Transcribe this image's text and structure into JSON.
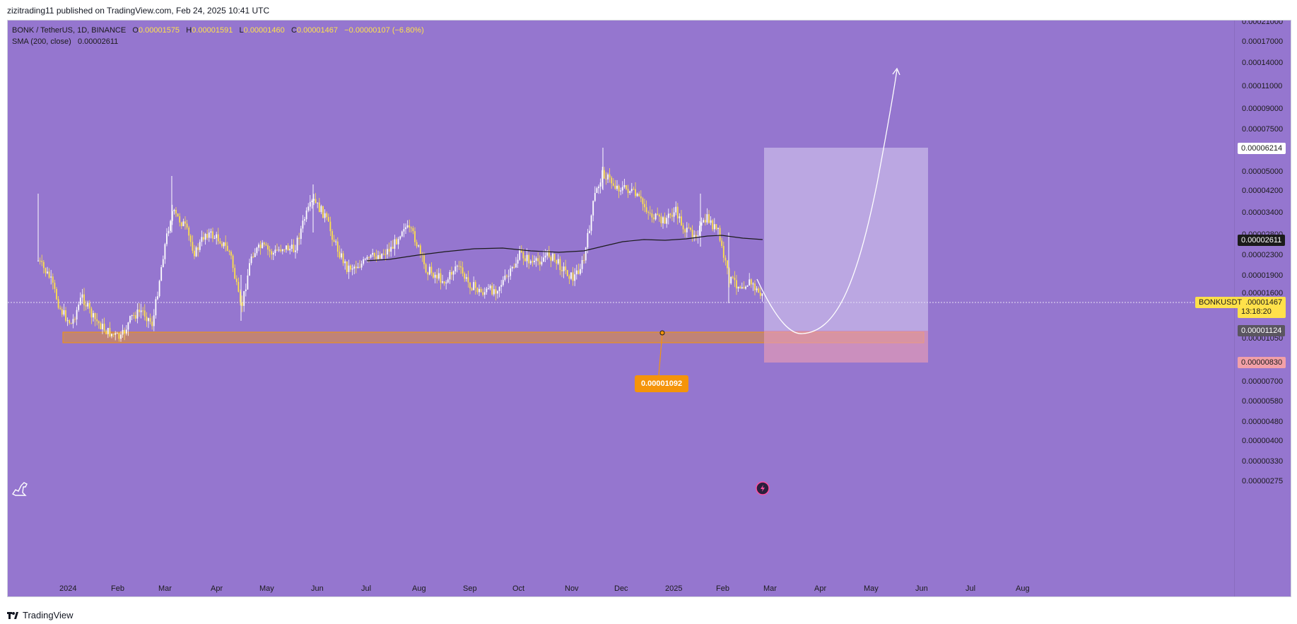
{
  "header": {
    "published_text": "zizitrading11 published on TradingView.com, Feb 24, 2025 10:41 UTC"
  },
  "legend": {
    "symbol_text": "BONK / TetherUS, 1D, BINANCE",
    "open_label": "O",
    "open_value": "0.00001575",
    "high_label": "H",
    "high_value": "0.00001591",
    "low_label": "L",
    "low_value": "0.00001460",
    "close_label": "C",
    "close_value": "0.00001467",
    "change_value": "−0.00000107 (−6.80%)",
    "sma_label": "SMA (200, close)",
    "sma_value": "0.00002611"
  },
  "price_axis": {
    "ticks": [
      "0.00021000",
      "0.00017000",
      "0.00014000",
      "0.00011000",
      "0.00009000",
      "0.00007500",
      "0.00005000",
      "0.00004200",
      "0.00003400",
      "0.00002800",
      "0.00002300",
      "0.00001900",
      "0.00001600",
      "0.00001300",
      "0.00001050",
      "0.00000700",
      "0.00000580",
      "0.00000480",
      "0.00000400",
      "0.00000330",
      "0.00000275"
    ],
    "target_badge": "0.00006214",
    "sma_badge": "0.00002611",
    "symbol_badge": "BONKUSDT",
    "last_price_badge": "0.00001467",
    "countdown_badge": "13:18:20",
    "entry_badge": "0.00001124",
    "stop_badge": "0.00000830"
  },
  "time_axis": {
    "labels": [
      "2024",
      "Feb",
      "Mar",
      "Apr",
      "May",
      "Jun",
      "Jul",
      "Aug",
      "Sep",
      "Oct",
      "Nov",
      "Dec",
      "2025",
      "Feb",
      "Mar",
      "Apr",
      "May",
      "Jun",
      "Jul",
      "Aug"
    ]
  },
  "annotations": {
    "support_callout": "0.00001092"
  },
  "colors": {
    "background": "#9576cf",
    "candle_up": "#ffffff",
    "candle_down": "#ffe14a",
    "sma_line": "#1b1b1b",
    "support_zone": "#f5940a",
    "target_zone": "#b9a5e0",
    "stop_zone": "#e88fb0"
  },
  "footer": {
    "brand_text": "TradingView"
  }
}
